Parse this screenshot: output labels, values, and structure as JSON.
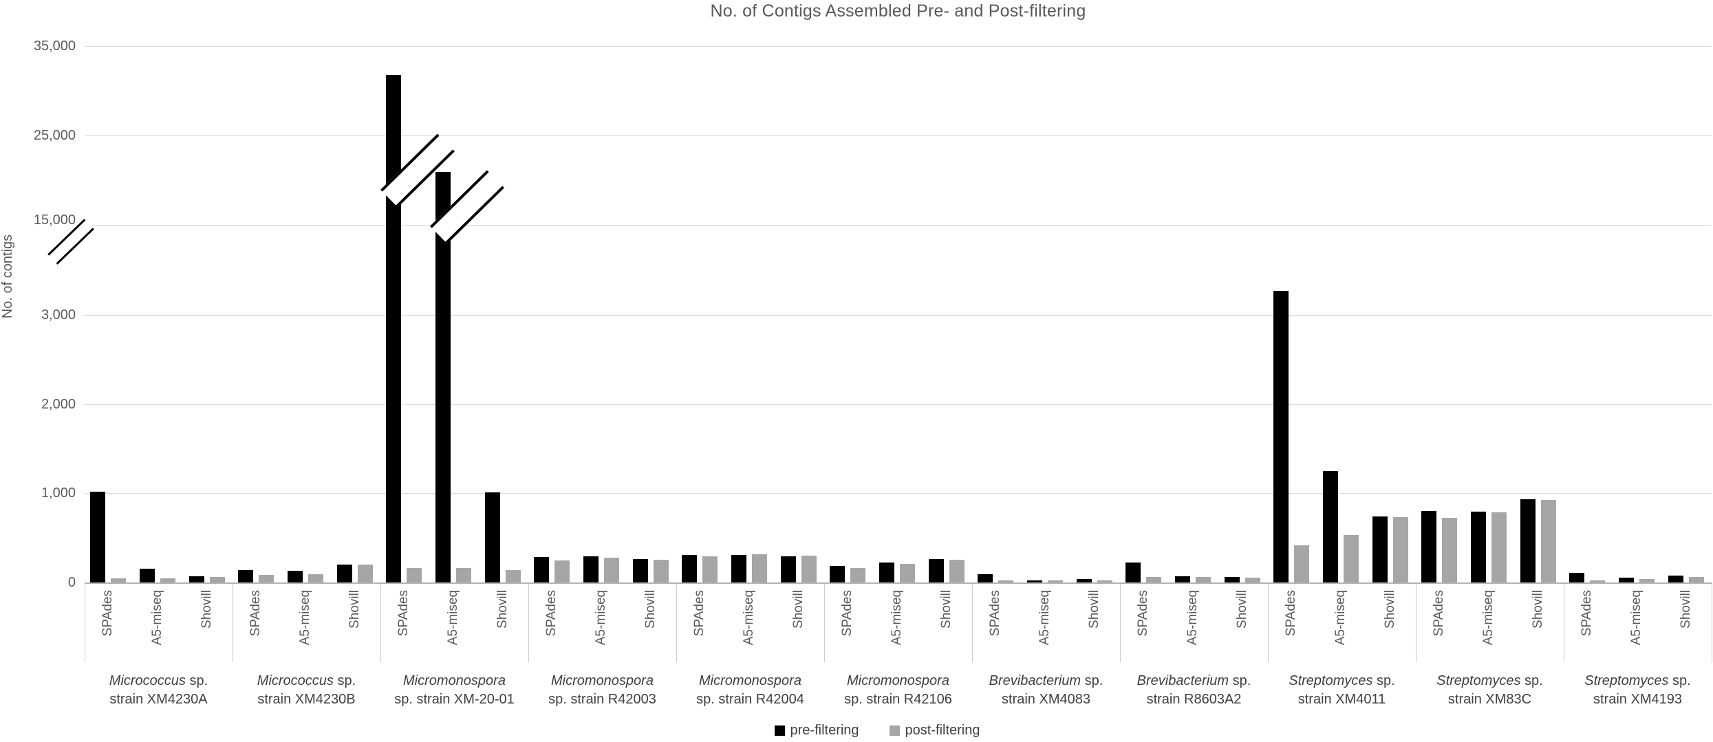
{
  "title": "No. of Contigs Assembled Pre- and Post-filtering",
  "chart_data": {
    "type": "bar",
    "title": "No. of Contigs Assembled Pre- and Post-filtering",
    "ylabel": "No. of contigs",
    "xlabel": "",
    "grid": "horizontal",
    "legend_position": "bottom-center",
    "axis_break": {
      "between": [
        3000,
        15000
      ],
      "note": "broken y-axis: compressed scale above 3,000; double slash marks on axis and on the two tallest bars"
    },
    "y_ticks": [
      {
        "value": 0,
        "label": "0"
      },
      {
        "value": 1000,
        "label": "1,000"
      },
      {
        "value": 2000,
        "label": "2,000"
      },
      {
        "value": 3000,
        "label": "3,000"
      },
      {
        "value": 15000,
        "label": "15,000"
      },
      {
        "value": 25000,
        "label": "25,000"
      },
      {
        "value": 35000,
        "label": "35,000"
      }
    ],
    "series": [
      {
        "name": "pre-filtering",
        "color": "#000000"
      },
      {
        "name": "post-filtering",
        "color": "#a6a6a6"
      }
    ],
    "assembler_names": [
      "SPAdes",
      "A5-miseq",
      "Shovill"
    ],
    "groups": [
      {
        "genus": "Micrococcus",
        "line1_suffix": " sp.",
        "line2": "strain XM4230A",
        "assemblers": [
          {
            "name": "SPAdes",
            "pre": 1020,
            "post": 50
          },
          {
            "name": "A5-miseq",
            "pre": 155,
            "post": 50
          },
          {
            "name": "Shovill",
            "pre": 70,
            "post": 60
          }
        ]
      },
      {
        "genus": "Micrococcus",
        "line1_suffix": " sp.",
        "line2": "strain XM4230B",
        "assemblers": [
          {
            "name": "SPAdes",
            "pre": 140,
            "post": 85
          },
          {
            "name": "A5-miseq",
            "pre": 130,
            "post": 90
          },
          {
            "name": "Shovill",
            "pre": 200,
            "post": 200
          }
        ]
      },
      {
        "genus": "Micromonospora",
        "line1_suffix": "",
        "line2": "sp. strain XM-20-01",
        "assemblers": [
          {
            "name": "SPAdes",
            "pre": 31800,
            "post": 160,
            "break_marked": true
          },
          {
            "name": "A5-miseq",
            "pre": 20900,
            "post": 160,
            "break_marked": true
          },
          {
            "name": "Shovill",
            "pre": 1010,
            "post": 140
          }
        ]
      },
      {
        "genus": "Micromonospora",
        "line1_suffix": "",
        "line2": "sp. strain R42003",
        "assemblers": [
          {
            "name": "SPAdes",
            "pre": 285,
            "post": 250
          },
          {
            "name": "A5-miseq",
            "pre": 290,
            "post": 280
          },
          {
            "name": "Shovill",
            "pre": 265,
            "post": 255
          }
        ]
      },
      {
        "genus": "Micromonospora",
        "line1_suffix": "",
        "line2": "sp. strain R42004",
        "assemblers": [
          {
            "name": "SPAdes",
            "pre": 310,
            "post": 290
          },
          {
            "name": "A5-miseq",
            "pre": 305,
            "post": 315
          },
          {
            "name": "Shovill",
            "pre": 295,
            "post": 300
          }
        ]
      },
      {
        "genus": "Micromonospora",
        "line1_suffix": "",
        "line2": "sp. strain R42106",
        "assemblers": [
          {
            "name": "SPAdes",
            "pre": 185,
            "post": 160
          },
          {
            "name": "A5-miseq",
            "pre": 220,
            "post": 210
          },
          {
            "name": "Shovill",
            "pre": 260,
            "post": 255
          }
        ]
      },
      {
        "genus": "Brevibacterium",
        "line1_suffix": " sp.",
        "line2": "strain XM4083",
        "assemblers": [
          {
            "name": "SPAdes",
            "pre": 95,
            "post": 20
          },
          {
            "name": "A5-miseq",
            "pre": 25,
            "post": 20
          },
          {
            "name": "Shovill",
            "pre": 35,
            "post": 25
          }
        ]
      },
      {
        "genus": "Brevibacterium",
        "line1_suffix": " sp.",
        "line2": "strain R8603A2",
        "assemblers": [
          {
            "name": "SPAdes",
            "pre": 220,
            "post": 60
          },
          {
            "name": "A5-miseq",
            "pre": 70,
            "post": 60
          },
          {
            "name": "Shovill",
            "pre": 60,
            "post": 55
          }
        ]
      },
      {
        "genus": "Streptomyces",
        "line1_suffix": " sp.",
        "line2": "strain XM4011",
        "assemblers": [
          {
            "name": "SPAdes",
            "pre": 6200,
            "post": 420
          },
          {
            "name": "A5-miseq",
            "pre": 1250,
            "post": 535
          },
          {
            "name": "Shovill",
            "pre": 740,
            "post": 735
          }
        ]
      },
      {
        "genus": "Streptomyces",
        "line1_suffix": " sp.",
        "line2": "strain XM83C",
        "assemblers": [
          {
            "name": "SPAdes",
            "pre": 800,
            "post": 725
          },
          {
            "name": "A5-miseq",
            "pre": 795,
            "post": 785
          },
          {
            "name": "Shovill",
            "pre": 930,
            "post": 925
          }
        ]
      },
      {
        "genus": "Streptomyces",
        "line1_suffix": " sp.",
        "line2": "strain XM4193",
        "assemblers": [
          {
            "name": "SPAdes",
            "pre": 105,
            "post": 25
          },
          {
            "name": "A5-miseq",
            "pre": 55,
            "post": 35
          },
          {
            "name": "Shovill",
            "pre": 80,
            "post": 60
          }
        ]
      }
    ]
  },
  "legend": {
    "pre_label": "pre-filtering",
    "post_label": "post-filtering"
  }
}
